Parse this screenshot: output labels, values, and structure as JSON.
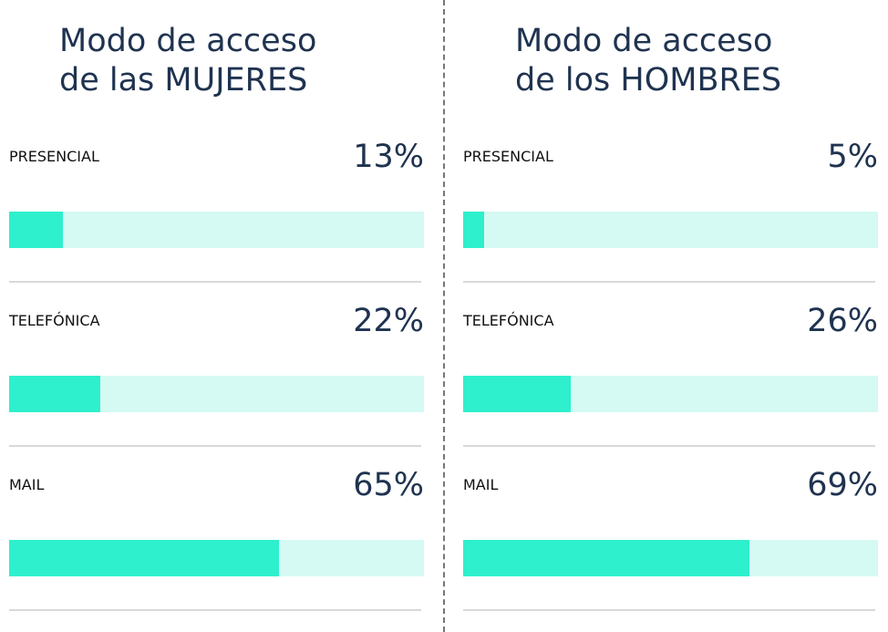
{
  "chart_data": [
    {
      "type": "bar",
      "title": "Modo de acceso\nde las MUJERES",
      "categories": [
        "PRESENCIAL",
        "TELEFÓNICA",
        "MAIL"
      ],
      "values": [
        13,
        22,
        65
      ],
      "value_labels": [
        "13%",
        "22%",
        "65%"
      ],
      "xlim": [
        0,
        100
      ],
      "color": "#2ef0cc",
      "track_color": "#d5faf3"
    },
    {
      "type": "bar",
      "title": "Modo de acceso\nde los HOMBRES",
      "categories": [
        "PRESENCIAL",
        "TELEFÓNICA",
        "MAIL"
      ],
      "values": [
        5,
        26,
        69
      ],
      "value_labels": [
        "5%",
        "26%",
        "69%"
      ],
      "xlim": [
        0,
        100
      ],
      "color": "#2ef0cc",
      "track_color": "#d5faf3"
    }
  ]
}
